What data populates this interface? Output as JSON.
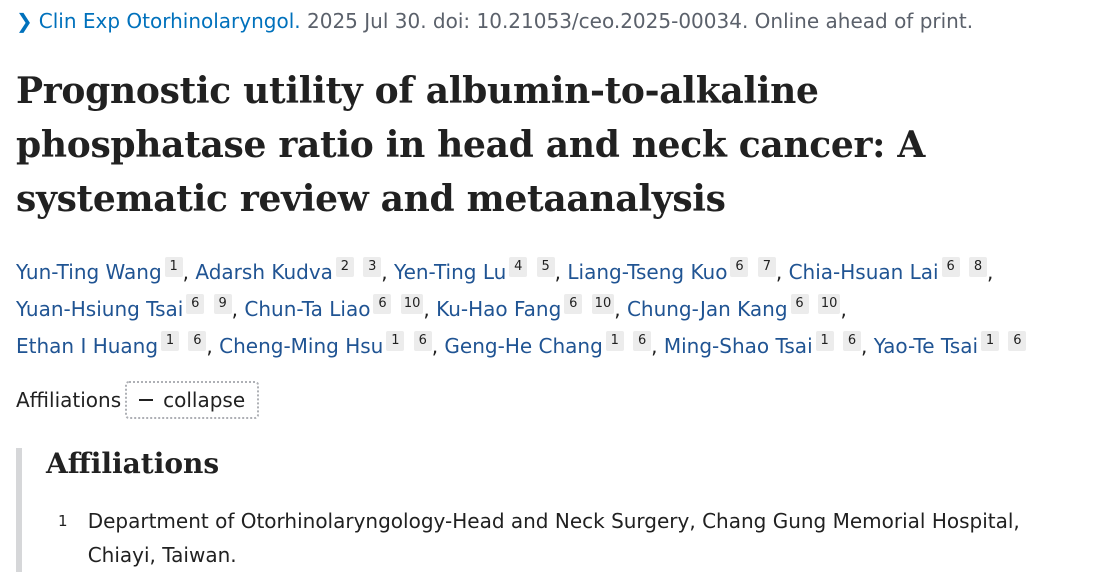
{
  "citation": {
    "journal": "Clin Exp Otorhinolaryngol.",
    "details": " 2025 Jul 30. doi: 10.21053/ceo.2025-00034. Online ahead of print."
  },
  "title": "Prognostic utility of albumin-to-alkaline phosphatase ratio in head and neck cancer: A systematic review and metaanalysis",
  "authors": [
    {
      "name": "Yun-Ting Wang",
      "affs": [
        "1"
      ]
    },
    {
      "name": "Adarsh Kudva",
      "affs": [
        "2",
        "3"
      ]
    },
    {
      "name": "Yen-Ting Lu",
      "affs": [
        "4",
        "5"
      ]
    },
    {
      "name": "Liang-Tseng Kuo",
      "affs": [
        "6",
        "7"
      ]
    },
    {
      "name": "Chia-Hsuan Lai",
      "affs": [
        "6",
        "8"
      ]
    },
    {
      "name": "Yuan-Hsiung Tsai",
      "affs": [
        "6",
        "9"
      ]
    },
    {
      "name": "Chun-Ta Liao",
      "affs": [
        "6",
        "10"
      ]
    },
    {
      "name": "Ku-Hao Fang",
      "affs": [
        "6",
        "10"
      ]
    },
    {
      "name": "Chung-Jan Kang",
      "affs": [
        "6",
        "10"
      ]
    },
    {
      "name": "Ethan I Huang",
      "affs": [
        "1",
        "6"
      ]
    },
    {
      "name": "Cheng-Ming Hsu",
      "affs": [
        "1",
        "6"
      ]
    },
    {
      "name": "Geng-He Chang",
      "affs": [
        "1",
        "6"
      ]
    },
    {
      "name": "Ming-Shao Tsai",
      "affs": [
        "1",
        "6"
      ]
    },
    {
      "name": "Yao-Te Tsai",
      "affs": [
        "1",
        "6"
      ]
    }
  ],
  "affiliations_toggle": {
    "label": "Affiliations",
    "button_label": "collapse"
  },
  "affiliations_panel": {
    "heading": "Affiliations",
    "items": [
      {
        "num": "1",
        "text": "Department of Otorhinolaryngology-Head and Neck Surgery, Chang Gung Memorial Hospital, Chiayi, Taiwan."
      }
    ]
  },
  "colors": {
    "link": "#205493",
    "journal_link": "#0071bc",
    "badge_bg": "#ececec",
    "panel_border": "#d6d7d9"
  }
}
